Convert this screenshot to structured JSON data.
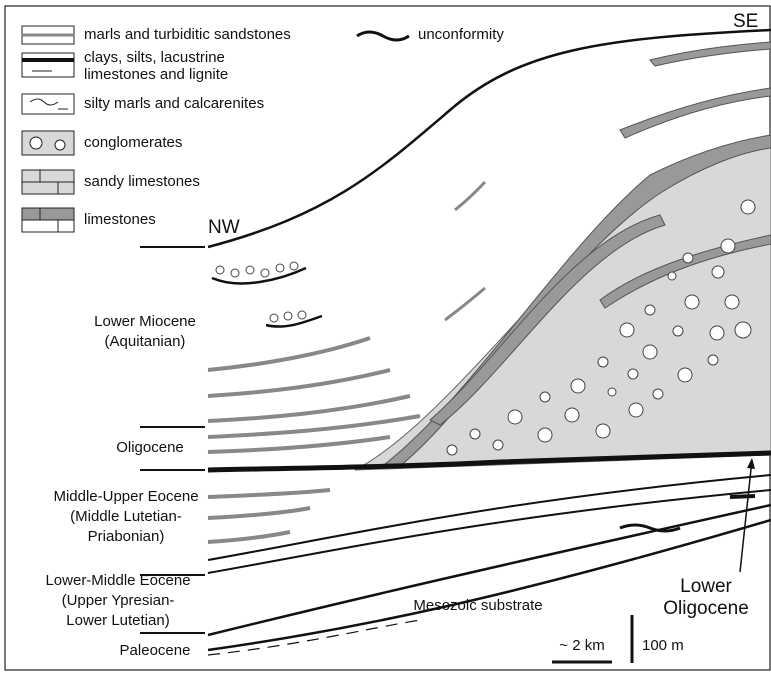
{
  "legend": {
    "items": [
      {
        "lines": [
          "marls and turbiditic sandstones"
        ]
      },
      {
        "lines": [
          "clays, silts, lacustrine",
          "limestones and lignite"
        ]
      },
      {
        "lines": [
          "silty marls and calcarenites"
        ]
      },
      {
        "lines": [
          "conglomerates"
        ]
      },
      {
        "lines": [
          "sandy limestones"
        ]
      },
      {
        "lines": [
          "limestones"
        ]
      }
    ],
    "unconformity": "unconformity"
  },
  "section": {
    "nw": "NW",
    "se": "SE",
    "mesozoic": "Mesozoic substrate",
    "lower_oligocene": [
      "Lower",
      "Oligocene"
    ]
  },
  "stratigraphy": [
    {
      "lines": [
        "Lower Miocene",
        "(Aquitanian)"
      ]
    },
    {
      "lines": [
        "Oligocene"
      ]
    },
    {
      "lines": [
        "Middle-Upper Eocene",
        "(Middle Lutetian-",
        "Priabonian)"
      ]
    },
    {
      "lines": [
        "Lower-Middle Eocene",
        "(Upper Ypresian-",
        "Lower Lutetian)"
      ]
    },
    {
      "lines": [
        "Paleocene"
      ]
    }
  ],
  "scale": {
    "horizontal": "~ 2 km",
    "vertical": "100 m"
  }
}
